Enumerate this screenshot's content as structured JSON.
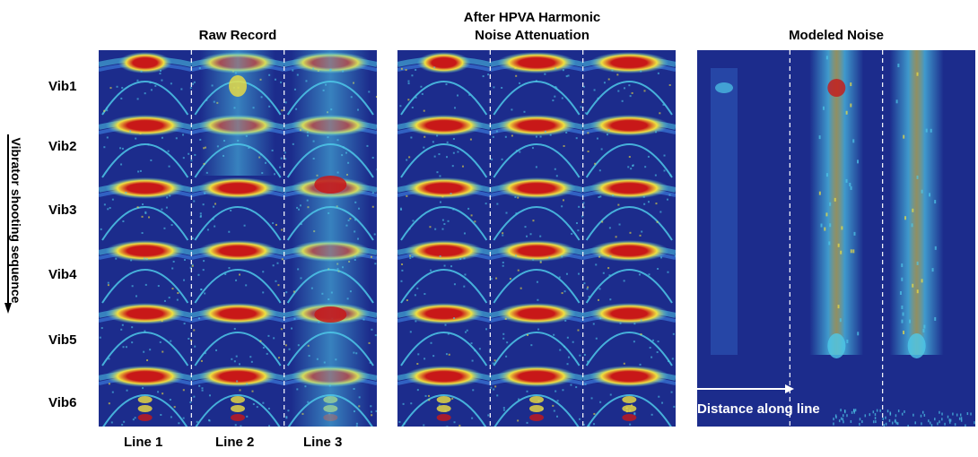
{
  "titles": {
    "raw": "Raw Record",
    "after_line1": "After HPVA Harmonic",
    "after_line2": "Noise Attenuation",
    "modeled": "Modeled Noise"
  },
  "row_labels": [
    "Vib1",
    "Vib2",
    "Vib3",
    "Vib4",
    "Vib5",
    "Vib6"
  ],
  "column_labels": [
    "Line 1",
    "Line 2",
    "Line 3"
  ],
  "side_label": "Vibrator shooting sequence",
  "distance_label": "Distance along line",
  "colors": {
    "background_blue": "#1c2c8c",
    "mid_blue": "#3a78d8",
    "cyan": "#4ec8e8",
    "yellow": "#f0e040",
    "red": "#c81818",
    "divider": "#ffffff"
  }
}
